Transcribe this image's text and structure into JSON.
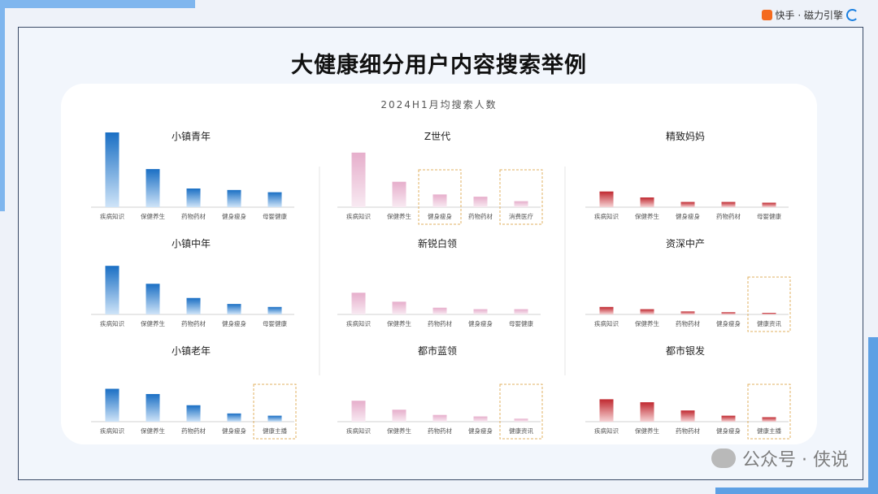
{
  "header": {
    "logo_text": "快手 · 磁力引擎",
    "title": "大健康细分用户内容搜索举例",
    "subtitle": "2024H1月均搜索人数"
  },
  "watermark": {
    "text": "公众号 · 侠说",
    "icon": "wechat-icon"
  },
  "colors": {
    "blue": "#1a6fc4",
    "pink": "#e6aecb",
    "red": "#c0282f",
    "highlight_border": "#e0b060"
  },
  "chart_data": [
    {
      "type": "bar",
      "title": "小镇青年",
      "color": "blue",
      "categories": [
        "疾病知识",
        "保健养生",
        "药物药材",
        "健身瘦身",
        "母婴健康"
      ],
      "values": [
        100,
        51,
        25,
        23,
        20
      ],
      "highlight": []
    },
    {
      "type": "bar",
      "title": "Z世代",
      "color": "pink",
      "categories": [
        "疾病知识",
        "保健养生",
        "健身瘦身",
        "药物药材",
        "消费医疗"
      ],
      "values": [
        73,
        34,
        17,
        14,
        8
      ],
      "highlight": [
        2,
        4
      ]
    },
    {
      "type": "bar",
      "title": "精致妈妈",
      "color": "red",
      "categories": [
        "疾病知识",
        "保健养生",
        "健身瘦身",
        "药物药材",
        "母婴健康"
      ],
      "values": [
        21,
        13,
        7,
        7,
        6
      ],
      "highlight": []
    },
    {
      "type": "bar",
      "title": "小镇中年",
      "color": "blue",
      "categories": [
        "疾病知识",
        "保健养生",
        "药物药材",
        "健身瘦身",
        "母婴健康"
      ],
      "values": [
        65,
        41,
        22,
        14,
        10
      ],
      "highlight": []
    },
    {
      "type": "bar",
      "title": "新锐白领",
      "color": "pink",
      "categories": [
        "疾病知识",
        "保健养生",
        "药物药材",
        "健身瘦身",
        "母婴健康"
      ],
      "values": [
        29,
        17,
        9,
        7,
        7
      ],
      "highlight": []
    },
    {
      "type": "bar",
      "title": "资深中产",
      "color": "red",
      "categories": [
        "疾病知识",
        "保健养生",
        "药物药材",
        "健身瘦身",
        "健康资讯"
      ],
      "values": [
        10,
        7,
        4,
        3,
        2
      ],
      "highlight": [
        4
      ]
    },
    {
      "type": "bar",
      "title": "小镇老年",
      "color": "blue",
      "categories": [
        "疾病知识",
        "保健养生",
        "药物药材",
        "健身瘦身",
        "健康主播"
      ],
      "values": [
        44,
        37,
        22,
        11,
        8
      ],
      "highlight": [
        4
      ]
    },
    {
      "type": "bar",
      "title": "都市蓝领",
      "color": "pink",
      "categories": [
        "疾病知识",
        "保健养生",
        "药物药材",
        "健身瘦身",
        "健康资讯"
      ],
      "values": [
        28,
        16,
        9,
        7,
        4
      ],
      "highlight": [
        4
      ]
    },
    {
      "type": "bar",
      "title": "都市银发",
      "color": "red",
      "categories": [
        "疾病知识",
        "保健养生",
        "药物药材",
        "健身瘦身",
        "健康主播"
      ],
      "values": [
        30,
        26,
        15,
        8,
        6
      ],
      "highlight": [
        4
      ]
    }
  ]
}
